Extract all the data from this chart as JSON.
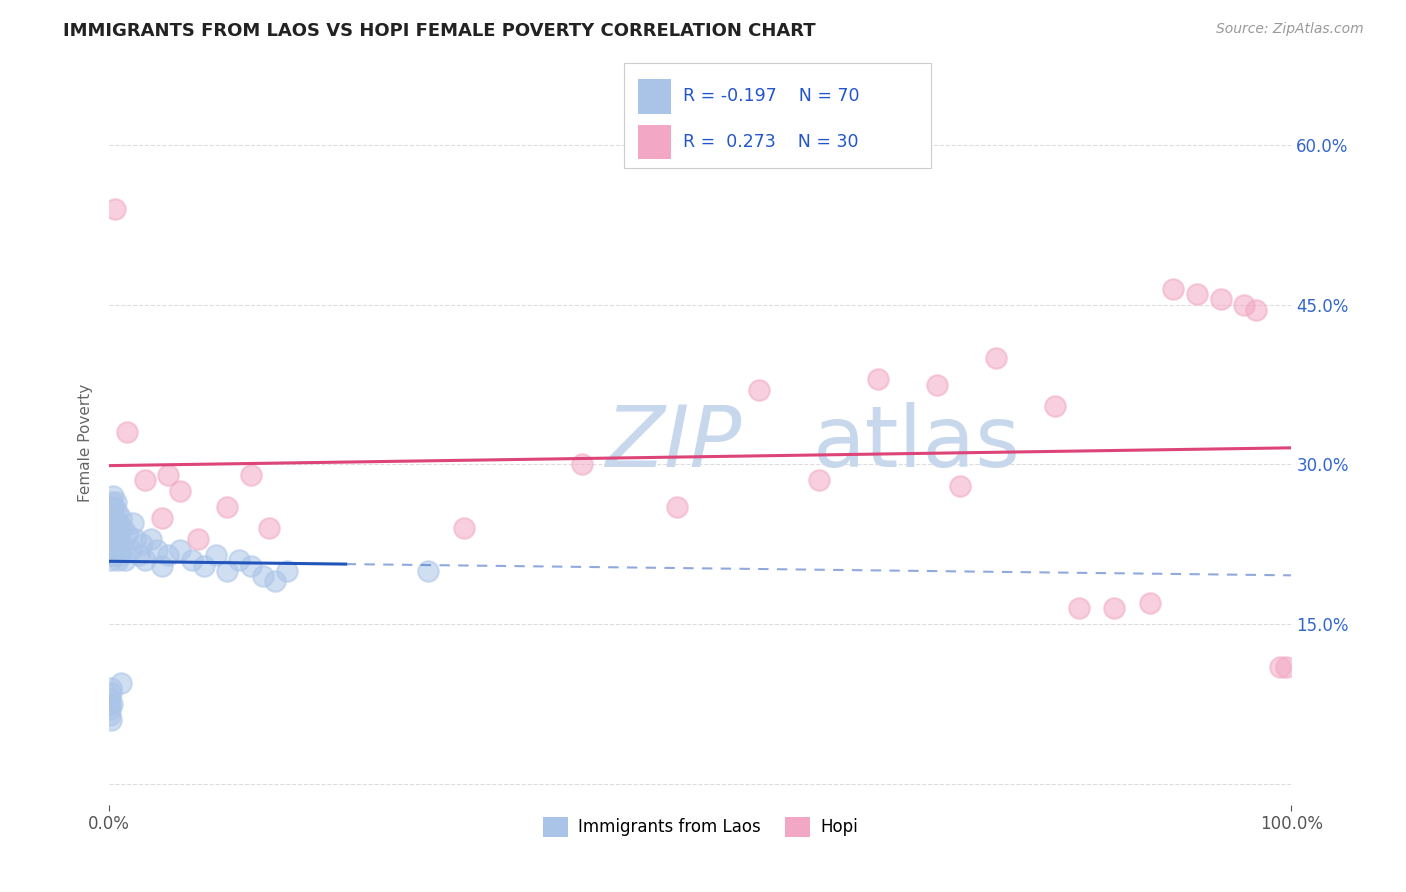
{
  "title": "IMMIGRANTS FROM LAOS VS HOPI FEMALE POVERTY CORRELATION CHART",
  "source": "Source: ZipAtlas.com",
  "ylabel": "Female Poverty",
  "legend_label1": "Immigrants from Laos",
  "legend_label2": "Hopi",
  "R1": -0.197,
  "N1": 70,
  "R2": 0.273,
  "N2": 30,
  "color1": "#aac4e8",
  "color2": "#f2a8c4",
  "line_color1": "#2255bb",
  "line_color2": "#dd4477",
  "title_color": "#222222",
  "axis_label_color": "#666666",
  "tick_color": "#555555",
  "source_color": "#999999",
  "xlim": [
    0.0,
    100.0
  ],
  "ylim": [
    -2.0,
    66.0
  ],
  "ytick_positions": [
    0,
    15,
    30,
    45,
    60
  ],
  "ytick_labels_right": [
    "",
    "15.0%",
    "30.0%",
    "45.0%",
    "60.0%"
  ],
  "xtick_positions": [
    0,
    100
  ],
  "xtick_labels": [
    "0.0%",
    "100.0%"
  ],
  "blue_solid_x_end": 20,
  "blue_dots": [
    [
      0.05,
      22.0
    ],
    [
      0.08,
      24.0
    ],
    [
      0.1,
      26.0
    ],
    [
      0.1,
      23.0
    ],
    [
      0.12,
      25.0
    ],
    [
      0.15,
      22.0
    ],
    [
      0.15,
      24.5
    ],
    [
      0.18,
      21.0
    ],
    [
      0.2,
      26.5
    ],
    [
      0.2,
      23.5
    ],
    [
      0.22,
      25.0
    ],
    [
      0.25,
      22.5
    ],
    [
      0.25,
      24.0
    ],
    [
      0.28,
      21.5
    ],
    [
      0.3,
      27.0
    ],
    [
      0.3,
      23.0
    ],
    [
      0.32,
      25.5
    ],
    [
      0.35,
      22.0
    ],
    [
      0.38,
      24.5
    ],
    [
      0.4,
      26.0
    ],
    [
      0.42,
      23.5
    ],
    [
      0.45,
      25.0
    ],
    [
      0.48,
      22.5
    ],
    [
      0.5,
      24.0
    ],
    [
      0.5,
      21.5
    ],
    [
      0.55,
      26.5
    ],
    [
      0.6,
      23.0
    ],
    [
      0.62,
      25.5
    ],
    [
      0.65,
      22.0
    ],
    [
      0.7,
      24.5
    ],
    [
      0.75,
      21.0
    ],
    [
      0.8,
      23.5
    ],
    [
      0.85,
      22.0
    ],
    [
      0.9,
      24.0
    ],
    [
      0.95,
      21.5
    ],
    [
      1.0,
      25.0
    ],
    [
      1.1,
      22.5
    ],
    [
      1.2,
      24.0
    ],
    [
      1.3,
      21.0
    ],
    [
      1.5,
      23.5
    ],
    [
      1.8,
      22.0
    ],
    [
      2.0,
      24.5
    ],
    [
      2.2,
      23.0
    ],
    [
      2.5,
      21.5
    ],
    [
      2.8,
      22.5
    ],
    [
      3.0,
      21.0
    ],
    [
      3.5,
      23.0
    ],
    [
      4.0,
      22.0
    ],
    [
      4.5,
      20.5
    ],
    [
      5.0,
      21.5
    ],
    [
      6.0,
      22.0
    ],
    [
      7.0,
      21.0
    ],
    [
      8.0,
      20.5
    ],
    [
      9.0,
      21.5
    ],
    [
      10.0,
      20.0
    ],
    [
      11.0,
      21.0
    ],
    [
      12.0,
      20.5
    ],
    [
      13.0,
      19.5
    ],
    [
      14.0,
      19.0
    ],
    [
      15.0,
      20.0
    ],
    [
      0.05,
      7.5
    ],
    [
      0.07,
      8.0
    ],
    [
      0.09,
      6.5
    ],
    [
      0.1,
      7.0
    ],
    [
      0.12,
      8.5
    ],
    [
      0.15,
      6.0
    ],
    [
      0.18,
      9.0
    ],
    [
      0.2,
      7.5
    ],
    [
      1.0,
      9.5
    ],
    [
      27.0,
      20.0
    ]
  ],
  "pink_dots": [
    [
      0.5,
      54.0
    ],
    [
      1.5,
      33.0
    ],
    [
      3.0,
      28.5
    ],
    [
      4.5,
      25.0
    ],
    [
      5.0,
      29.0
    ],
    [
      6.0,
      27.5
    ],
    [
      7.5,
      23.0
    ],
    [
      10.0,
      26.0
    ],
    [
      12.0,
      29.0
    ],
    [
      13.5,
      24.0
    ],
    [
      30.0,
      24.0
    ],
    [
      40.0,
      30.0
    ],
    [
      48.0,
      26.0
    ],
    [
      55.0,
      37.0
    ],
    [
      60.0,
      28.5
    ],
    [
      65.0,
      38.0
    ],
    [
      70.0,
      37.5
    ],
    [
      72.0,
      28.0
    ],
    [
      75.0,
      40.0
    ],
    [
      80.0,
      35.5
    ],
    [
      82.0,
      16.5
    ],
    [
      85.0,
      16.5
    ],
    [
      88.0,
      17.0
    ],
    [
      90.0,
      46.5
    ],
    [
      92.0,
      46.0
    ],
    [
      94.0,
      45.5
    ],
    [
      96.0,
      45.0
    ],
    [
      97.0,
      44.5
    ],
    [
      99.0,
      11.0
    ],
    [
      99.5,
      11.0
    ]
  ],
  "watermark_zip": "ZIP",
  "watermark_atlas": "atlas",
  "watermark_color_zip": "#c8d8ec",
  "watermark_color_atlas": "#c8d8ec",
  "background_color": "#ffffff",
  "grid_color": "#dddddd"
}
